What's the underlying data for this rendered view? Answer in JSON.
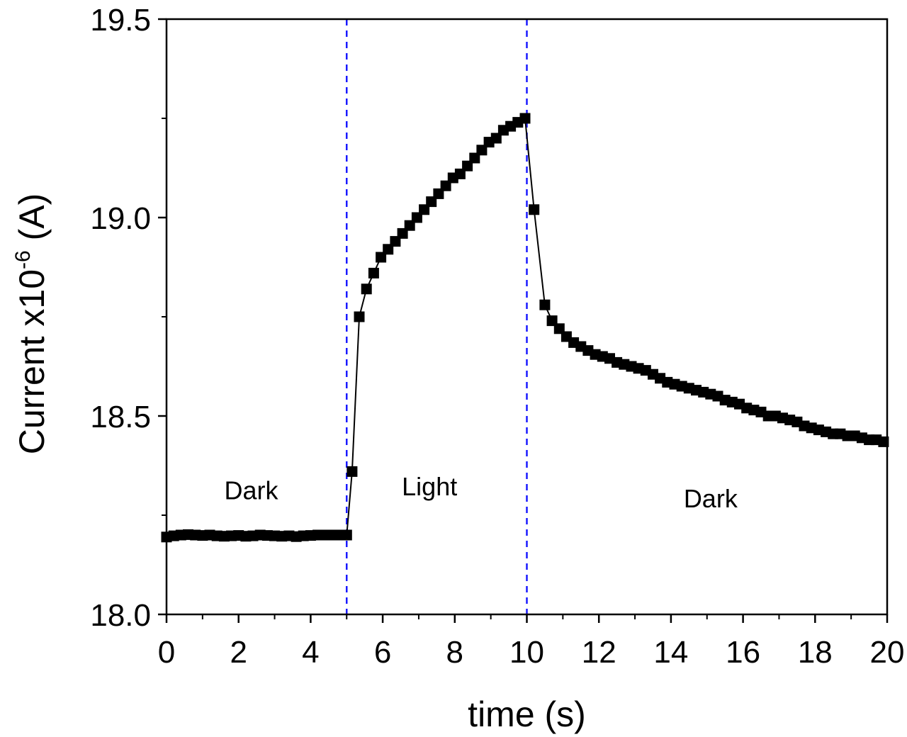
{
  "chart_data": {
    "type": "scatter",
    "xlabel": "time (s)",
    "ylabel_prefix": "Current x10",
    "ylabel_exponent": "-6",
    "ylabel_suffix": " (A)",
    "xlim": [
      0,
      20
    ],
    "ylim": [
      18.0,
      19.5
    ],
    "x_ticks": [
      "0",
      "2",
      "4",
      "6",
      "8",
      "10",
      "12",
      "14",
      "16",
      "18",
      "20"
    ],
    "y_ticks": [
      "18.0",
      "18.5",
      "19.0",
      "19.5"
    ],
    "grid": false,
    "marker": "square",
    "connected_line": true,
    "colors": {
      "series": "#000000",
      "divider": "#1a1aff"
    },
    "vertical_lines": [
      5,
      10
    ],
    "annotations": [
      {
        "text": "Dark",
        "x": 2.35,
        "y": 18.29
      },
      {
        "text": "Light",
        "x": 7.3,
        "y": 18.3
      },
      {
        "text": "Dark",
        "x": 15.1,
        "y": 18.27
      }
    ],
    "series": [
      {
        "x": [
          0,
          0.2,
          0.4,
          0.6,
          0.8,
          1.0,
          1.2,
          1.4,
          1.6,
          1.8,
          2.0,
          2.2,
          2.4,
          2.6,
          2.8,
          3.0,
          3.2,
          3.4,
          3.6,
          3.8,
          4.0,
          4.2,
          4.4,
          4.6,
          4.8,
          5.0,
          5.15,
          5.35,
          5.55,
          5.75,
          5.95,
          6.15,
          6.35,
          6.55,
          6.75,
          6.95,
          7.15,
          7.35,
          7.55,
          7.75,
          7.95,
          8.15,
          8.35,
          8.55,
          8.75,
          8.95,
          9.15,
          9.35,
          9.55,
          9.75,
          9.95,
          10.2,
          10.5,
          10.7,
          10.9,
          11.1,
          11.3,
          11.5,
          11.7,
          11.9,
          12.1,
          12.3,
          12.5,
          12.7,
          12.9,
          13.1,
          13.3,
          13.5,
          13.7,
          13.9,
          14.1,
          14.3,
          14.5,
          14.7,
          14.9,
          15.1,
          15.3,
          15.5,
          15.7,
          15.9,
          16.1,
          16.3,
          16.5,
          16.7,
          16.9,
          17.1,
          17.3,
          17.5,
          17.7,
          17.9,
          18.1,
          18.3,
          18.5,
          18.7,
          18.9,
          19.1,
          19.3,
          19.5,
          19.7,
          19.9
        ],
        "y": [
          18.195,
          18.198,
          18.2,
          18.201,
          18.2,
          18.199,
          18.2,
          18.198,
          18.197,
          18.198,
          18.199,
          18.197,
          18.198,
          18.2,
          18.199,
          18.198,
          18.197,
          18.198,
          18.196,
          18.198,
          18.199,
          18.2,
          18.2,
          18.2,
          18.2,
          18.2,
          18.36,
          18.75,
          18.82,
          18.86,
          18.9,
          18.92,
          18.94,
          18.96,
          18.98,
          19.0,
          19.02,
          19.04,
          19.06,
          19.08,
          19.1,
          19.11,
          19.13,
          19.15,
          19.17,
          19.19,
          19.2,
          19.22,
          19.23,
          19.24,
          19.25,
          19.02,
          18.78,
          18.74,
          18.72,
          18.7,
          18.685,
          18.675,
          18.665,
          18.655,
          18.65,
          18.645,
          18.635,
          18.63,
          18.625,
          18.62,
          18.615,
          18.605,
          18.595,
          18.585,
          18.58,
          18.575,
          18.57,
          18.565,
          18.56,
          18.555,
          18.55,
          18.54,
          18.535,
          18.53,
          18.52,
          18.515,
          18.51,
          18.5,
          18.5,
          18.495,
          18.49,
          18.485,
          18.475,
          18.47,
          18.465,
          18.46,
          18.455,
          18.455,
          18.45,
          18.45,
          18.445,
          18.44,
          18.44,
          18.435
        ]
      }
    ]
  }
}
